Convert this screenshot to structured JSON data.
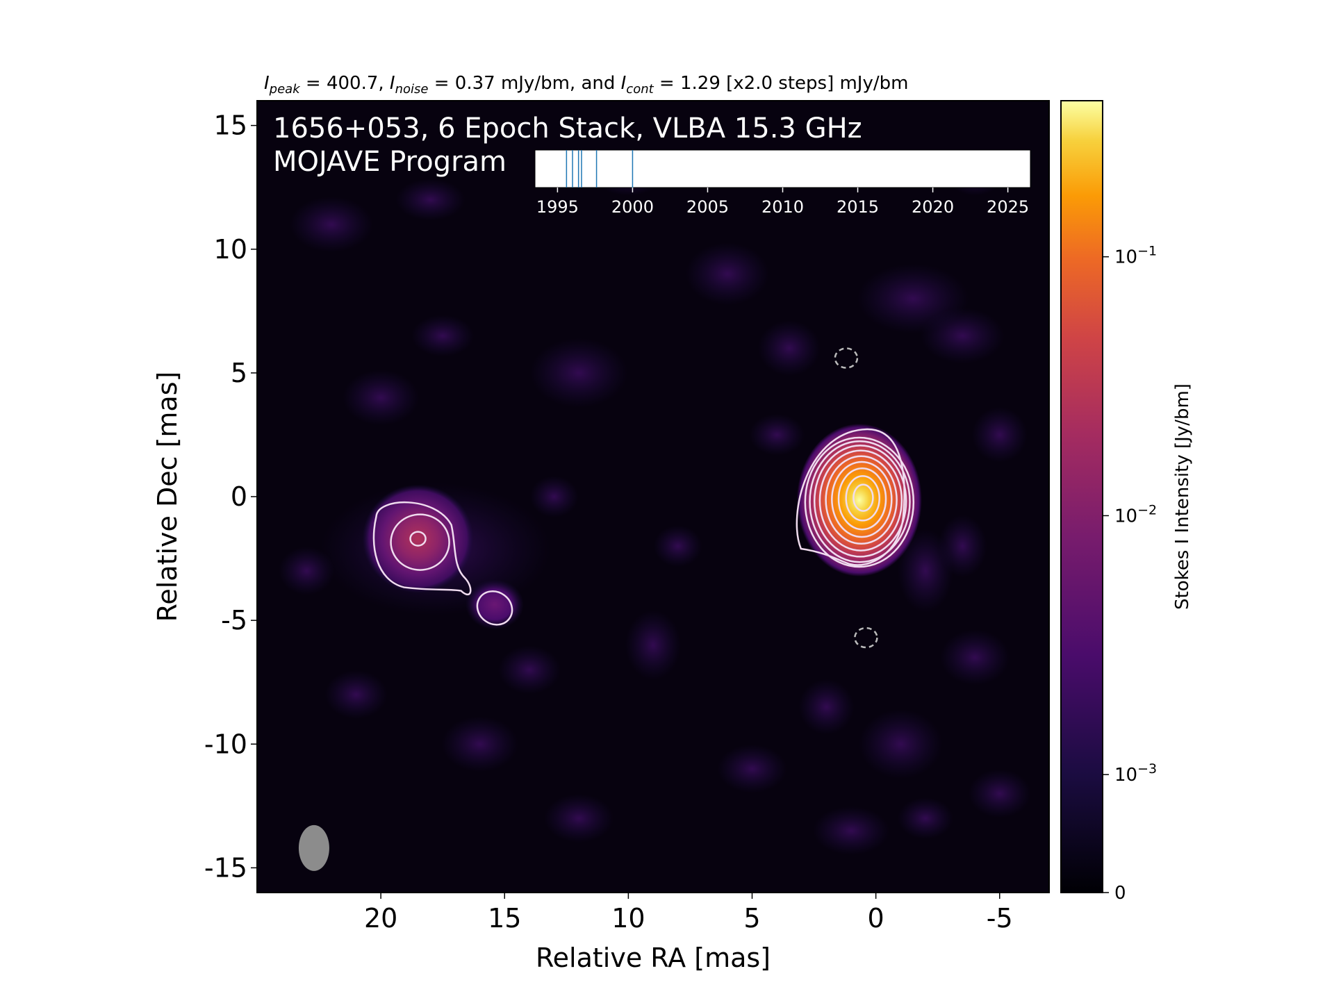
{
  "chart_data": {
    "type": "heatmap",
    "header": {
      "peak_var": "I",
      "peak_sub": "peak",
      "peak_text": " = 400.7, ",
      "noise_var": "I",
      "noise_sub": "noise",
      "noise_text": " = 0.37 mJy/bm, and ",
      "cont_var": "I",
      "cont_sub": "cont",
      "cont_text": " = 1.29 [x2.0 steps] mJy/bm"
    },
    "title_line1": "1656+053, 6 Epoch Stack, VLBA 15.3 GHz",
    "title_line2": "MOJAVE Program",
    "xlabel": "Relative RA [mas]",
    "ylabel": "Relative Dec [mas]",
    "xlim": [
      25,
      -7
    ],
    "ylim": [
      -16,
      16
    ],
    "x_ticks": [
      20,
      15,
      10,
      5,
      0,
      -5
    ],
    "y_ticks": [
      15,
      10,
      5,
      0,
      -5,
      -10,
      -15
    ],
    "epoch_timeline": {
      "xlim": [
        1993.5,
        2026.5
      ],
      "ticks": [
        1995,
        2000,
        2005,
        2010,
        2015,
        2020,
        2025
      ],
      "epochs": [
        1995.6,
        1996.0,
        1996.4,
        1996.6,
        1997.6,
        2000.0
      ],
      "line_color": "#1f77b4"
    },
    "colorbar": {
      "label": "Stokes I Intensity [Jy/bm]",
      "colormap": "inferno",
      "scale": "log",
      "ticks": [
        {
          "value": 0,
          "label": "0"
        },
        {
          "value": 0.001,
          "label": "10",
          "exp": "−3"
        },
        {
          "value": 0.01,
          "label": "10",
          "exp": "−2"
        },
        {
          "value": 0.1,
          "label": "10",
          "exp": "−1"
        }
      ],
      "max": 0.4007
    },
    "sources": [
      {
        "name": "core",
        "ra": 0.5,
        "dec": 0.0,
        "peak_jy": 0.4007
      },
      {
        "name": "lobe",
        "ra": 18.5,
        "dec": -1.7,
        "peak_jy": 0.0115
      },
      {
        "name": "knot",
        "ra": 15.4,
        "dec": -4.5,
        "peak_jy": 0.0017
      }
    ],
    "negative_contours": [
      {
        "ra": 1.2,
        "dec": 5.6
      },
      {
        "ra": 0.4,
        "dec": -5.7
      }
    ],
    "beam": {
      "ra": 22.7,
      "dec": -14.2
    }
  }
}
